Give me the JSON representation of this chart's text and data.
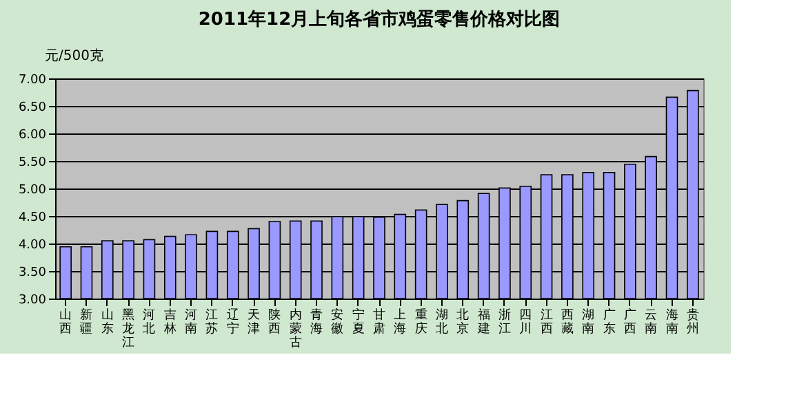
{
  "chart_data": {
    "type": "bar",
    "title": "2011年12月上旬各省市鸡蛋零售价格对比图",
    "ylabel": "元/500克",
    "categories": [
      "山西",
      "新疆",
      "山东",
      "黑龙江",
      "河北",
      "吉林",
      "河南",
      "江苏",
      "辽宁",
      "天津",
      "陕西",
      "内蒙古",
      "青海",
      "安徽",
      "宁夏",
      "甘肃",
      "上海",
      "重庆",
      "湖北",
      "北京",
      "福建",
      "浙江",
      "四川",
      "江西",
      "西藏",
      "湖南",
      "广东",
      "广西",
      "云南",
      "海南",
      "贵州"
    ],
    "values": [
      3.94,
      3.94,
      4.05,
      4.05,
      4.07,
      4.13,
      4.16,
      4.22,
      4.22,
      4.27,
      4.4,
      4.41,
      4.41,
      4.49,
      4.49,
      4.48,
      4.53,
      4.61,
      4.71,
      4.78,
      4.91,
      5.01,
      5.04,
      5.25,
      5.25,
      5.29,
      5.29,
      5.44,
      5.58,
      6.66,
      6.78
    ],
    "color": "#9999ff",
    "ylim": [
      3,
      7
    ],
    "yticks": [
      {
        "value": 3,
        "label": "3.00"
      },
      {
        "value": 3.5,
        "label": "3.50"
      },
      {
        "value": 4,
        "label": "4.00"
      },
      {
        "value": 4.5,
        "label": "4.50"
      },
      {
        "value": 5,
        "label": "5.00"
      },
      {
        "value": 5.5,
        "label": "5.50"
      },
      {
        "value": 6,
        "label": "6.00"
      },
      {
        "value": 6.5,
        "label": "6.50"
      },
      {
        "value": 7,
        "label": "7.00"
      }
    ],
    "grid": "y"
  }
}
